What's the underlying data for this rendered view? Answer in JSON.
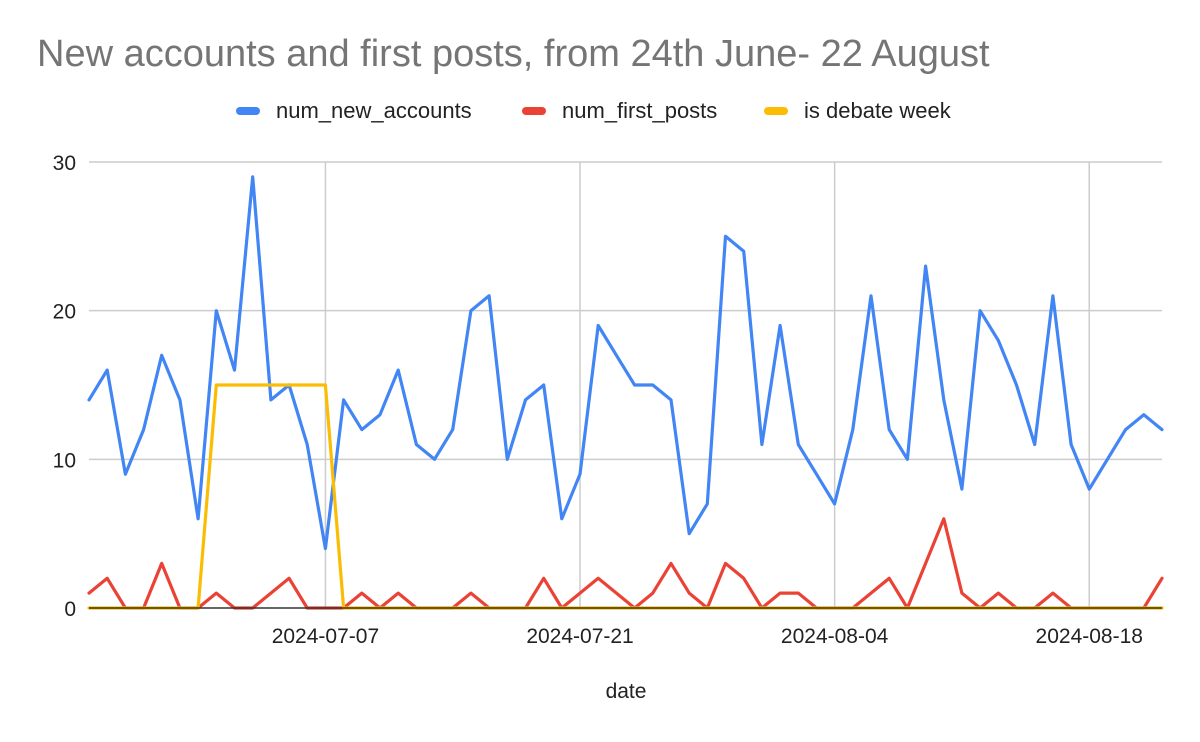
{
  "chart_data": {
    "type": "line",
    "title": "New accounts and first posts, from 24th June- 22 August",
    "xlabel": "date",
    "ylabel": "",
    "ylim": [
      0,
      30
    ],
    "yticks": [
      0,
      10,
      20,
      30
    ],
    "x_start": "2024-06-24",
    "x_end": "2024-08-22",
    "xticks": [
      "2024-07-07",
      "2024-07-21",
      "2024-08-04",
      "2024-08-18"
    ],
    "grid": true,
    "legend_position": "top",
    "series": [
      {
        "name": "num_new_accounts",
        "color": "#4285F4",
        "values": [
          14,
          16,
          9,
          12,
          17,
          14,
          6,
          20,
          16,
          29,
          14,
          15,
          11,
          4,
          14,
          12,
          13,
          16,
          11,
          10,
          12,
          20,
          21,
          10,
          14,
          15,
          6,
          9,
          19,
          17,
          15,
          15,
          14,
          5,
          7,
          25,
          24,
          11,
          19,
          11,
          9,
          7,
          12,
          21,
          12,
          10,
          23,
          14,
          8,
          20,
          18,
          15,
          11,
          21,
          11,
          8,
          10,
          12,
          13,
          12
        ]
      },
      {
        "name": "num_first_posts",
        "color": "#EA4335",
        "values": [
          1,
          2,
          0,
          0,
          3,
          0,
          0,
          1,
          0,
          0,
          1,
          2,
          0,
          0,
          0,
          1,
          0,
          1,
          0,
          0,
          0,
          1,
          0,
          0,
          0,
          2,
          0,
          1,
          2,
          1,
          0,
          1,
          3,
          1,
          0,
          3,
          2,
          0,
          1,
          1,
          0,
          0,
          0,
          1,
          2,
          0,
          3,
          6,
          1,
          0,
          1,
          0,
          0,
          1,
          0,
          0,
          0,
          0,
          0,
          2
        ]
      },
      {
        "name": "is debate week",
        "color": "#FBBC04",
        "values": [
          0,
          0,
          0,
          0,
          0,
          0,
          0,
          15,
          15,
          15,
          15,
          15,
          15,
          15,
          0,
          0,
          0,
          0,
          0,
          0,
          0,
          0,
          0,
          0,
          0,
          0,
          0,
          0,
          0,
          0,
          0,
          0,
          0,
          0,
          0,
          0,
          0,
          0,
          0,
          0,
          0,
          0,
          0,
          0,
          0,
          0,
          0,
          0,
          0,
          0,
          0,
          0,
          0,
          0,
          0,
          0,
          0,
          0,
          0,
          0
        ]
      }
    ]
  }
}
